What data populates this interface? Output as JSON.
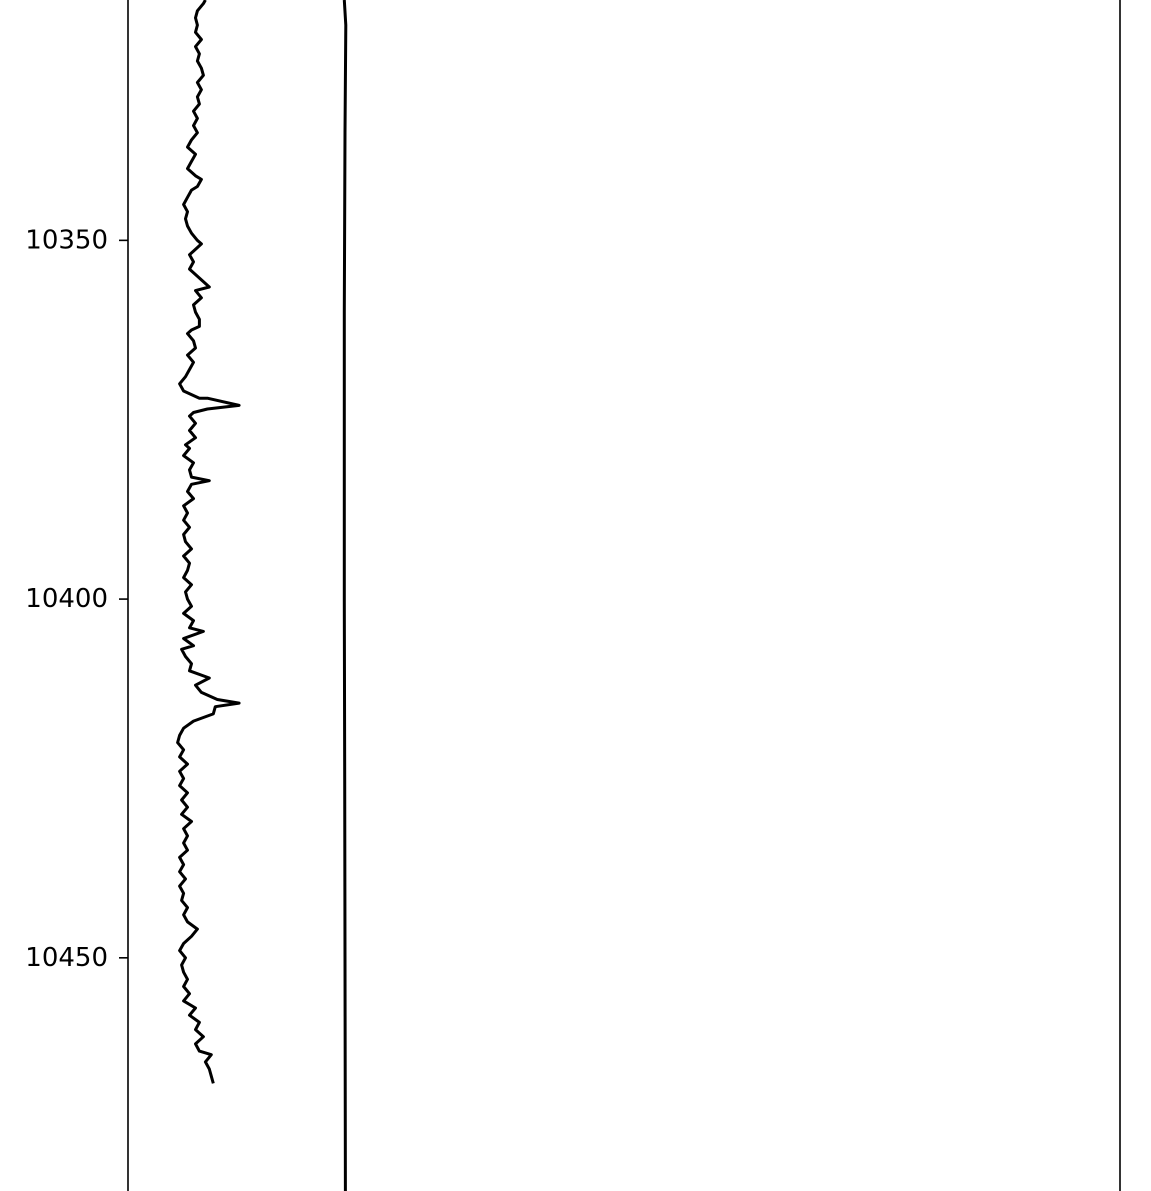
{
  "chart_data": {
    "type": "line",
    "title": "",
    "xlabel": "",
    "ylabel": "",
    "y_axis": "depth (increasing downward)",
    "ylim": [
      10316.5,
      10482.5
    ],
    "xlim": [
      0,
      250
    ],
    "grid": false,
    "yticks": [
      10350,
      10400,
      10450
    ],
    "ytick_labels": [
      "10350",
      "10400",
      "10450"
    ],
    "line_color": "#000000",
    "series": [
      {
        "points": [
          [
            19.5,
            10316.5
          ],
          [
            19.0,
            10317.0
          ],
          [
            17.5,
            10318.0
          ],
          [
            17.0,
            10319.0
          ],
          [
            17.5,
            10320.0
          ],
          [
            17.0,
            10321.0
          ],
          [
            18.5,
            10322.0
          ],
          [
            17.0,
            10323.0
          ],
          [
            18.0,
            10324.0
          ],
          [
            17.5,
            10325.0
          ],
          [
            18.5,
            10326.0
          ],
          [
            19.0,
            10327.0
          ],
          [
            17.5,
            10328.0
          ],
          [
            18.5,
            10329.0
          ],
          [
            17.5,
            10330.0
          ],
          [
            18.0,
            10331.0
          ],
          [
            16.5,
            10332.0
          ],
          [
            17.5,
            10333.0
          ],
          [
            16.5,
            10334.0
          ],
          [
            17.5,
            10335.0
          ],
          [
            16.0,
            10336.0
          ],
          [
            15.0,
            10337.0
          ],
          [
            17.0,
            10338.0
          ],
          [
            16.0,
            10339.0
          ],
          [
            15.0,
            10340.0
          ],
          [
            17.0,
            10341.0
          ],
          [
            18.5,
            10341.5
          ],
          [
            17.5,
            10342.5
          ],
          [
            16.0,
            10343.0
          ],
          [
            15.0,
            10344.0
          ],
          [
            14.0,
            10345.0
          ],
          [
            15.0,
            10346.0
          ],
          [
            14.5,
            10347.0
          ],
          [
            15.0,
            10348.0
          ],
          [
            16.0,
            10349.0
          ],
          [
            17.5,
            10350.0
          ],
          [
            18.5,
            10350.5
          ],
          [
            16.5,
            10351.5
          ],
          [
            15.5,
            10352.0
          ],
          [
            16.5,
            10353.0
          ],
          [
            15.5,
            10354.0
          ],
          [
            17.5,
            10355.0
          ],
          [
            20.5,
            10356.5
          ],
          [
            17.0,
            10357.0
          ],
          [
            18.5,
            10358.0
          ],
          [
            16.5,
            10359.0
          ],
          [
            17.0,
            10360.0
          ],
          [
            18.0,
            10361.0
          ],
          [
            18.0,
            10362.0
          ],
          [
            16.0,
            10362.5
          ],
          [
            15.0,
            10363.0
          ],
          [
            16.5,
            10364.0
          ],
          [
            17.0,
            10365.0
          ],
          [
            15.0,
            10366.0
          ],
          [
            16.5,
            10367.0
          ],
          [
            15.5,
            10368.0
          ],
          [
            14.5,
            10369.0
          ],
          [
            13.0,
            10370.0
          ],
          [
            14.0,
            10371.0
          ],
          [
            18.0,
            10372.0
          ],
          [
            20.0,
            10372.0
          ],
          [
            28.0,
            10373.0
          ],
          [
            20.0,
            10373.5
          ],
          [
            16.5,
            10374.0
          ],
          [
            15.5,
            10374.5
          ],
          [
            17.0,
            10375.5
          ],
          [
            15.5,
            10376.5
          ],
          [
            17.0,
            10377.5
          ],
          [
            14.5,
            10378.5
          ],
          [
            15.5,
            10379.0
          ],
          [
            14.0,
            10380.0
          ],
          [
            16.5,
            10381.0
          ],
          [
            15.5,
            10382.0
          ],
          [
            16.0,
            10383.0
          ],
          [
            20.5,
            10383.5
          ],
          [
            16.0,
            10384.0
          ],
          [
            15.0,
            10385.0
          ],
          [
            16.5,
            10386.0
          ],
          [
            14.0,
            10387.0
          ],
          [
            15.0,
            10388.0
          ],
          [
            14.0,
            10389.0
          ],
          [
            15.5,
            10390.0
          ],
          [
            14.0,
            10391.0
          ],
          [
            14.5,
            10392.0
          ],
          [
            16.0,
            10393.0
          ],
          [
            14.0,
            10394.0
          ],
          [
            15.5,
            10395.0
          ],
          [
            15.0,
            10396.0
          ],
          [
            14.0,
            10397.0
          ],
          [
            16.0,
            10398.0
          ],
          [
            14.5,
            10399.0
          ],
          [
            15.0,
            10400.0
          ],
          [
            16.0,
            10401.0
          ],
          [
            14.0,
            10402.0
          ],
          [
            16.5,
            10403.0
          ],
          [
            15.5,
            10404.0
          ],
          [
            19.0,
            10404.5
          ],
          [
            14.0,
            10405.5
          ],
          [
            16.5,
            10406.5
          ],
          [
            13.5,
            10407.0
          ],
          [
            14.5,
            10408.0
          ],
          [
            16.0,
            10409.0
          ],
          [
            15.5,
            10410.0
          ],
          [
            20.5,
            10411.0
          ],
          [
            17.0,
            10412.0
          ],
          [
            18.5,
            10413.0
          ],
          [
            22.5,
            10414.0
          ],
          [
            28.0,
            10414.5
          ],
          [
            22.0,
            10415.0
          ],
          [
            21.5,
            10416.0
          ],
          [
            16.5,
            10417.0
          ],
          [
            14.0,
            10418.0
          ],
          [
            13.0,
            10419.0
          ],
          [
            12.5,
            10420.0
          ],
          [
            14.0,
            10421.0
          ],
          [
            13.0,
            10422.0
          ],
          [
            15.0,
            10423.0
          ],
          [
            13.0,
            10424.0
          ],
          [
            14.0,
            10425.0
          ],
          [
            13.0,
            10426.0
          ],
          [
            15.0,
            10427.0
          ],
          [
            13.5,
            10428.0
          ],
          [
            15.0,
            10429.0
          ],
          [
            13.5,
            10430.0
          ],
          [
            16.0,
            10431.0
          ],
          [
            14.0,
            10432.0
          ],
          [
            15.0,
            10433.0
          ],
          [
            14.0,
            10434.0
          ],
          [
            15.0,
            10435.0
          ],
          [
            13.0,
            10436.0
          ],
          [
            14.0,
            10437.0
          ],
          [
            13.0,
            10438.0
          ],
          [
            14.5,
            10439.0
          ],
          [
            13.0,
            10440.0
          ],
          [
            14.0,
            10441.0
          ],
          [
            13.5,
            10442.0
          ],
          [
            15.0,
            10443.0
          ],
          [
            14.0,
            10444.0
          ],
          [
            15.0,
            10445.0
          ],
          [
            17.5,
            10446.0
          ],
          [
            16.0,
            10447.0
          ],
          [
            14.0,
            10448.0
          ],
          [
            13.0,
            10449.0
          ],
          [
            14.5,
            10450.0
          ],
          [
            13.5,
            10451.0
          ],
          [
            14.0,
            10452.0
          ],
          [
            15.0,
            10453.0
          ],
          [
            14.0,
            10454.0
          ],
          [
            15.5,
            10455.0
          ],
          [
            14.0,
            10456.0
          ],
          [
            17.0,
            10457.0
          ],
          [
            15.5,
            10458.0
          ],
          [
            18.0,
            10459.0
          ],
          [
            17.0,
            10460.0
          ],
          [
            19.0,
            10461.0
          ],
          [
            17.0,
            10462.0
          ],
          [
            18.0,
            10463.0
          ],
          [
            21.0,
            10463.5
          ],
          [
            19.5,
            10464.5
          ],
          [
            20.5,
            10465.5
          ],
          [
            21.0,
            10466.5
          ],
          [
            21.5,
            10467.5
          ]
        ]
      },
      {
        "points": [
          [
            54.5,
            10316.5
          ],
          [
            54.9,
            10320.0
          ],
          [
            54.7,
            10335.0
          ],
          [
            54.5,
            10360.0
          ],
          [
            54.5,
            10400.0
          ],
          [
            54.6,
            10425.0
          ],
          [
            54.7,
            10450.0
          ],
          [
            54.8,
            10482.5
          ]
        ]
      }
    ]
  }
}
